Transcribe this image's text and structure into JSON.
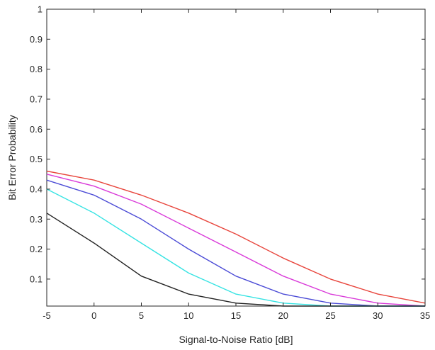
{
  "chart_data": {
    "type": "line",
    "title": "",
    "xlabel": "Signal-to-Noise Ratio [dB]",
    "ylabel": "Bit Error Probability",
    "xlim": [
      -5,
      35
    ],
    "ylim": [
      0.01,
      1
    ],
    "x_scale": "linear",
    "y_scale": "linear",
    "grid": false,
    "legend": "none",
    "x_ticks": [
      -5,
      0,
      5,
      10,
      15,
      20,
      25,
      30,
      35
    ],
    "x_tick_labels": [
      "-5",
      "0",
      "5",
      "10",
      "15",
      "20",
      "25",
      "30",
      "35"
    ],
    "y_ticks": [
      0.1,
      0.2,
      0.3,
      0.4,
      0.5,
      0.6,
      0.7,
      0.8,
      0.9,
      1
    ],
    "y_tick_labels": [
      "0.1",
      "0.2",
      "0.3",
      "0.4",
      "0.5",
      "0.6",
      "0.7",
      "0.8",
      "0.9",
      "1"
    ],
    "x": [
      -5,
      0,
      5,
      10,
      15,
      20,
      25,
      30,
      35
    ],
    "series": [
      {
        "color": "#e8453c",
        "values": [
          0.46,
          0.43,
          0.38,
          0.32,
          0.25,
          0.17,
          0.1,
          0.05,
          0.02
        ]
      },
      {
        "color": "#d93ad9",
        "values": [
          0.45,
          0.41,
          0.35,
          0.27,
          0.19,
          0.11,
          0.05,
          0.02,
          0.01
        ]
      },
      {
        "color": "#4b4bd6",
        "values": [
          0.43,
          0.38,
          0.3,
          0.2,
          0.11,
          0.05,
          0.02,
          0.01,
          0.01
        ]
      },
      {
        "color": "#36e3e3",
        "values": [
          0.4,
          0.32,
          0.22,
          0.12,
          0.05,
          0.02,
          0.01,
          0.01,
          0.01
        ]
      },
      {
        "color": "#222222",
        "values": [
          0.32,
          0.22,
          0.11,
          0.05,
          0.02,
          0.01,
          0.01,
          0.01,
          0.01
        ]
      }
    ]
  }
}
